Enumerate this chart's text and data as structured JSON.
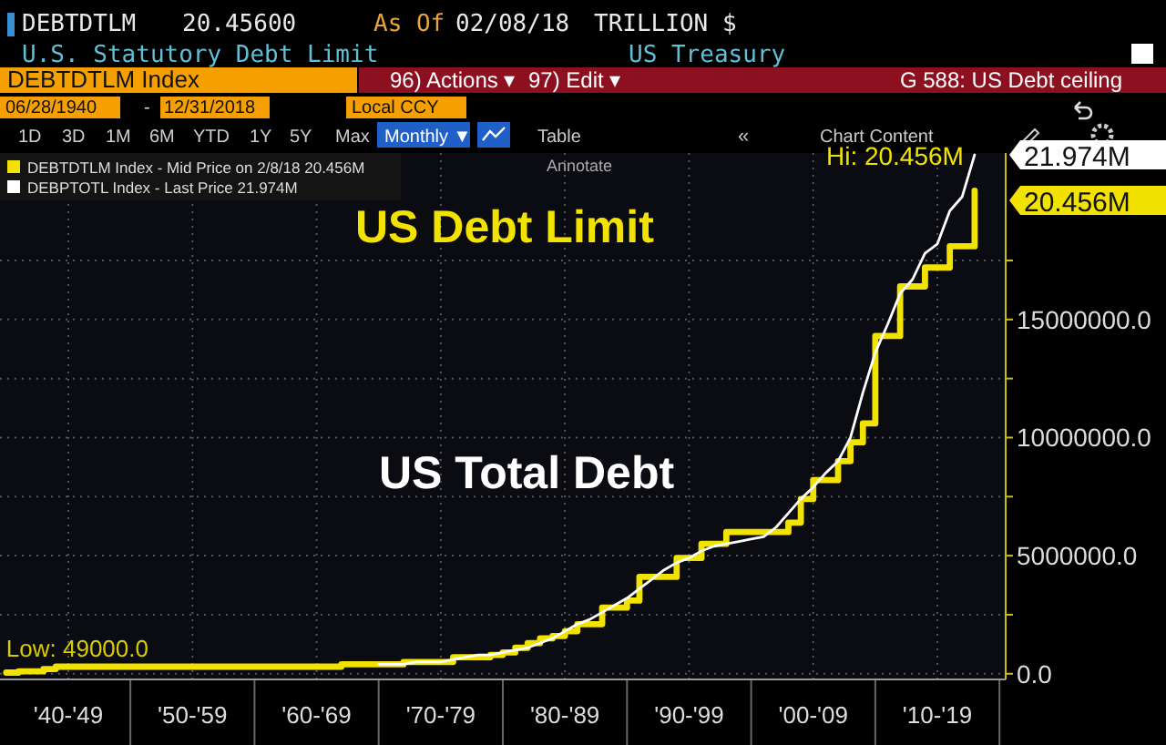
{
  "chart_data": {
    "type": "line",
    "title": "U.S. Statutory Debt Limit",
    "annotations": [
      "DEBTDTLM",
      "20.45600",
      "As Of",
      "02/08/18",
      "TRILLION $",
      "US Treasury",
      "DEBTDTLM Index",
      "96) Actions ▾",
      "97) Edit ▾",
      "G 588: US Debt ceiling",
      "06/28/1940",
      "-",
      "12/31/2018",
      "Local CCY",
      "1D",
      "3D",
      "1M",
      "6M",
      "YTD",
      "1Y",
      "5Y",
      "Max",
      "Monthly ▼",
      "Table",
      "«",
      "Chart Content",
      "Annotate",
      "US Debt Limit",
      "US Total Debt",
      "Hi: 20.456M",
      "Low: 49000.0",
      "21.974M",
      "20.456M"
    ],
    "categories": [
      null,
      null,
      null,
      null,
      null,
      "'40-'49",
      null,
      null,
      null,
      null,
      null,
      null,
      null,
      null,
      null,
      "'50-'59",
      null,
      null,
      null,
      null,
      null,
      null,
      null,
      null,
      null,
      "'60-'69",
      null,
      null,
      null,
      null,
      null,
      null,
      null,
      null,
      null,
      "'70-'79",
      null,
      null,
      null,
      null,
      null,
      null,
      null,
      null,
      null,
      "'80-'89",
      null,
      null,
      null,
      null,
      null,
      null,
      null,
      null,
      null,
      "'90-'99",
      null,
      null,
      null,
      null,
      null,
      null,
      null,
      null,
      null,
      "'00-'09",
      null,
      null,
      null,
      null,
      null,
      null,
      null,
      null,
      null,
      "'10-'19",
      null,
      null,
      null,
      null,
      null
    ],
    "series": [
      {
        "name": "DEBTDTLM Index - Mid Price on 2/8/18 20.456M",
        "type": "step",
        "color": "#f2e200",
        "values": [
          49000,
          100000,
          100000,
          200000,
          300000,
          300000,
          300000,
          300000,
          300000,
          300000,
          300000,
          300000,
          300000,
          300000,
          300000,
          300000,
          300000,
          300000,
          300000,
          300000,
          300000,
          300000,
          300000,
          300000,
          300000,
          300000,
          300000,
          400000,
          400000,
          400000,
          400000,
          400000,
          500000,
          500000,
          500000,
          500000,
          700000,
          700000,
          700000,
          800000,
          900000,
          1100000,
          1300000,
          1500000,
          1600000,
          1800000,
          2100000,
          2100000,
          2800000,
          2800000,
          3100000,
          4100000,
          4100000,
          4100000,
          4900000,
          4900000,
          5500000,
          5500000,
          6000000,
          6000000,
          6000000,
          6000000,
          6000000,
          6400000,
          7400000,
          8200000,
          8200000,
          9000000,
          9800000,
          10600000,
          14300000,
          14300000,
          16400000,
          16400000,
          17200000,
          17200000,
          18100000,
          18100000,
          20456000,
          null,
          null
        ]
      },
      {
        "name": "DEBPTOTL Index - Last Price 21.974M",
        "type": "line",
        "color": "#ffffff",
        "values": [
          null,
          null,
          null,
          null,
          null,
          null,
          null,
          null,
          null,
          null,
          null,
          null,
          null,
          null,
          null,
          null,
          null,
          null,
          null,
          null,
          null,
          null,
          null,
          null,
          null,
          null,
          null,
          null,
          null,
          null,
          400000,
          400000,
          400000,
          500000,
          500000,
          500000,
          600000,
          700000,
          800000,
          800000,
          900000,
          1000000,
          1100000,
          1300000,
          1500000,
          1800000,
          2100000,
          2300000,
          2600000,
          2900000,
          3200000,
          3600000,
          4000000,
          4400000,
          4700000,
          4900000,
          5200000,
          5400000,
          5500000,
          5600000,
          5700000,
          5800000,
          6200000,
          6800000,
          7400000,
          7900000,
          8500000,
          9000000,
          10000000,
          11900000,
          13600000,
          14800000,
          16100000,
          16700000,
          17800000,
          18200000,
          19600000,
          20200000,
          21974000,
          null,
          null
        ]
      }
    ],
    "ylim": [
      -240000,
      22050000
    ],
    "yticks": [
      {
        "value": 0,
        "label": "0.0"
      },
      {
        "value": 2500000,
        "label": null
      },
      {
        "value": 5000000,
        "label": "5000000.0"
      },
      {
        "value": 7500000,
        "label": null
      },
      {
        "value": 10000000,
        "label": "10000000.0"
      },
      {
        "value": 12500000,
        "label": null
      },
      {
        "value": 15000000,
        "label": "15000000.0"
      },
      {
        "value": 17500000,
        "label": null
      }
    ],
    "grid": true,
    "legend": "top left"
  }
}
